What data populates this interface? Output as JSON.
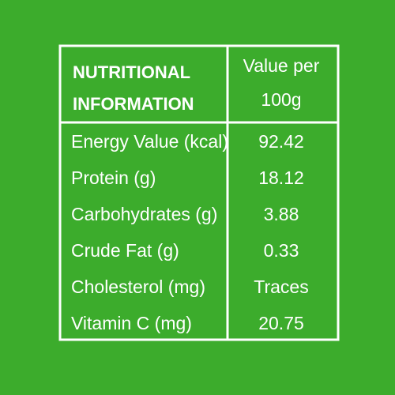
{
  "table": {
    "header": [
      [
        "NUTRITIONAL",
        "INFORMATION"
      ],
      [
        "Value per",
        "100g"
      ]
    ],
    "rows": [
      [
        "Energy Value (kcal)",
        "92.42"
      ],
      [
        "Protein (g)",
        "18.12"
      ],
      [
        "Carbohydrates (g)",
        "3.88"
      ],
      [
        "Crude Fat (g)",
        "0.33"
      ],
      [
        "Cholesterol (mg)",
        "Traces"
      ],
      [
        "Vitamin C (mg)",
        "20.75"
      ]
    ]
  }
}
